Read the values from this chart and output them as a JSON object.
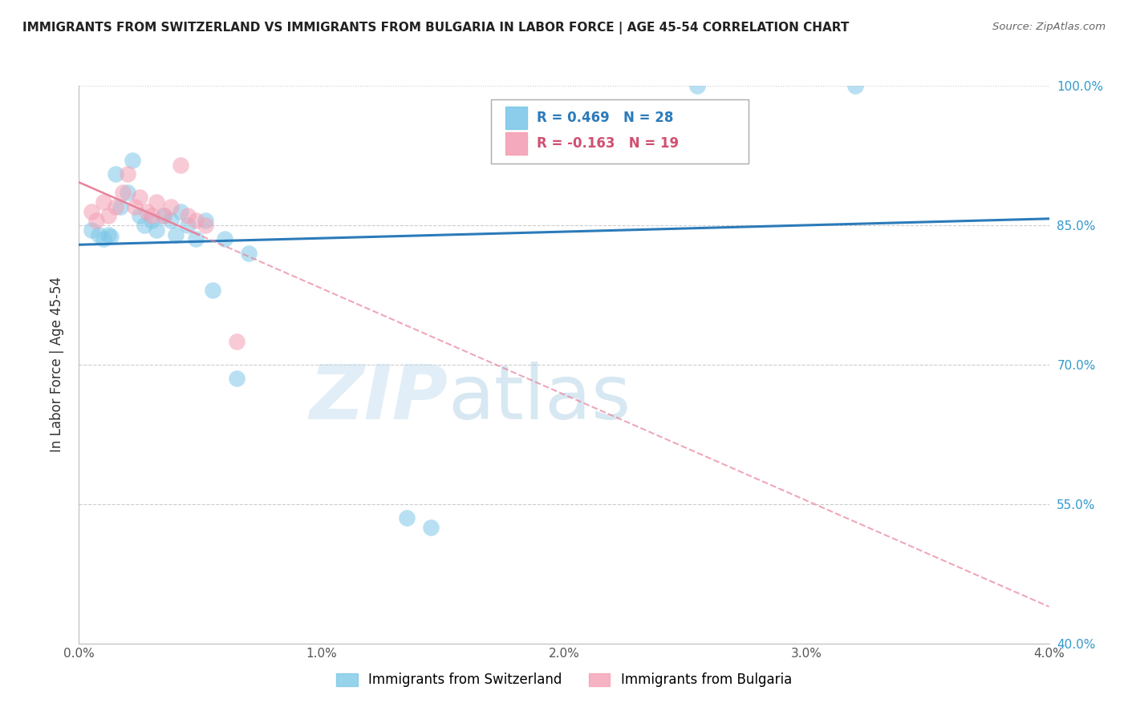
{
  "title": "IMMIGRANTS FROM SWITZERLAND VS IMMIGRANTS FROM BULGARIA IN LABOR FORCE | AGE 45-54 CORRELATION CHART",
  "source": "Source: ZipAtlas.com",
  "ylabel": "In Labor Force | Age 45-54",
  "xlim": [
    0.0,
    4.0
  ],
  "ylim": [
    40.0,
    100.0
  ],
  "xtick_vals": [
    0.0,
    1.0,
    2.0,
    3.0,
    4.0
  ],
  "xtick_labels": [
    "0.0%",
    "1.0%",
    "2.0%",
    "3.0%",
    "4.0%"
  ],
  "ytick_vals": [
    40.0,
    55.0,
    70.0,
    85.0,
    100.0
  ],
  "ytick_labels_right": [
    "40.0%",
    "55.0%",
    "70.0%",
    "85.0%",
    "100.0%"
  ],
  "r_switzerland": 0.469,
  "n_switzerland": 28,
  "r_bulgaria": -0.163,
  "n_bulgaria": 19,
  "color_switzerland": "#7ec8e8",
  "color_bulgaria": "#f4a0b5",
  "color_trendline_swiss": "#2b7bba",
  "color_trendline_bulg": "#e8829a",
  "legend_labels": [
    "Immigrants from Switzerland",
    "Immigrants from Bulgaria"
  ],
  "blue_x": [
    0.05,
    0.08,
    0.1,
    0.12,
    0.13,
    0.15,
    0.17,
    0.2,
    0.22,
    0.25,
    0.27,
    0.3,
    0.32,
    0.35,
    0.38,
    0.4,
    0.42,
    0.45,
    0.48,
    0.52,
    0.55,
    0.6,
    0.65,
    0.7,
    1.35,
    1.45,
    2.55,
    3.2
  ],
  "blue_y": [
    84.5,
    84.0,
    83.5,
    84.0,
    83.8,
    90.5,
    87.0,
    88.5,
    92.0,
    86.0,
    85.0,
    85.5,
    84.5,
    86.0,
    85.5,
    84.0,
    86.5,
    85.0,
    83.5,
    85.5,
    78.0,
    83.5,
    68.5,
    82.0,
    53.5,
    52.5,
    100.0,
    100.0
  ],
  "pink_x": [
    0.05,
    0.07,
    0.1,
    0.12,
    0.15,
    0.18,
    0.2,
    0.23,
    0.25,
    0.28,
    0.3,
    0.32,
    0.35,
    0.38,
    0.42,
    0.45,
    0.48,
    0.52,
    0.65
  ],
  "pink_y": [
    86.5,
    85.5,
    87.5,
    86.0,
    87.0,
    88.5,
    90.5,
    87.0,
    88.0,
    86.5,
    86.0,
    87.5,
    86.0,
    87.0,
    91.5,
    86.0,
    85.5,
    85.0,
    72.5
  ]
}
